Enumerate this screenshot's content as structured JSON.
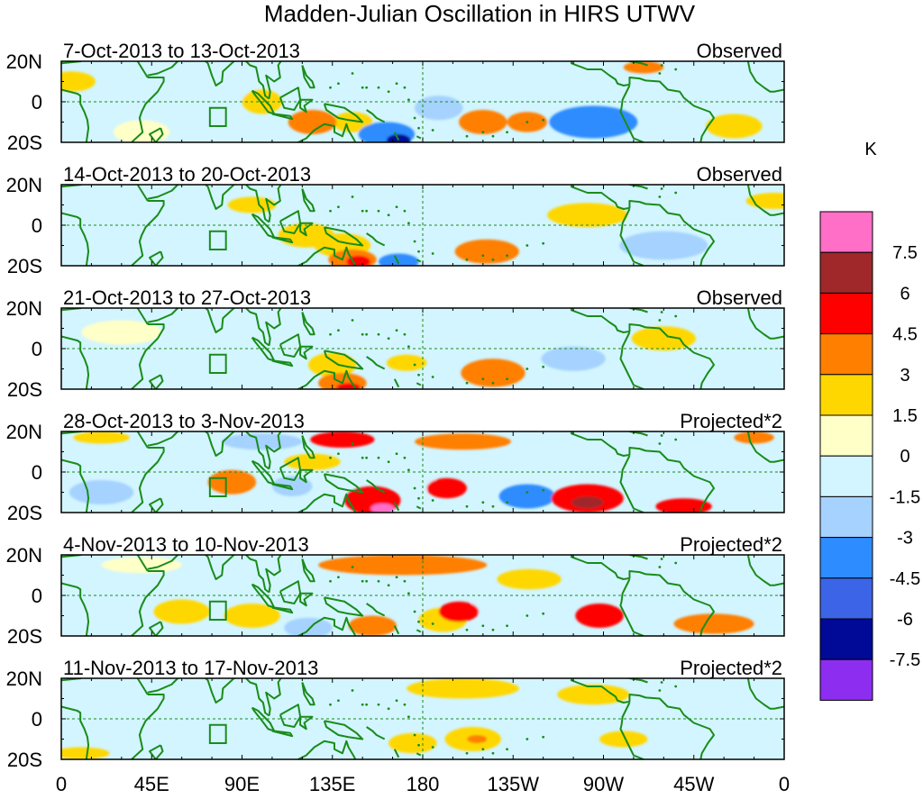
{
  "title": "Madden-Julian Oscillation in HIRS UTWV",
  "units": "K",
  "lat_labels": [
    "20N",
    "0",
    "20S"
  ],
  "lon_labels": [
    "0",
    "45E",
    "90E",
    "135E",
    "180",
    "135W",
    "90W",
    "45W",
    "0"
  ],
  "panels": [
    {
      "date_range": "7-Oct-2013 to 13-Oct-2013",
      "type": "Observed"
    },
    {
      "date_range": "14-Oct-2013 to 20-Oct-2013",
      "type": "Observed"
    },
    {
      "date_range": "21-Oct-2013 to 27-Oct-2013",
      "type": "Observed"
    },
    {
      "date_range": "28-Oct-2013 to 3-Nov-2013",
      "type": "Projected*2"
    },
    {
      "date_range": "4-Nov-2013 to 10-Nov-2013",
      "type": "Projected*2"
    },
    {
      "date_range": "11-Nov-2013 to 17-Nov-2013",
      "type": "Projected*2"
    }
  ],
  "colorbar": {
    "labels": [
      "7.5",
      "6",
      "4.5",
      "3",
      "1.5",
      "0",
      "-1.5",
      "-3",
      "-4.5",
      "-6",
      "-7.5"
    ],
    "colors": [
      "#ff6ec7",
      "#a0282a",
      "#ff0000",
      "#ff7f00",
      "#ffd700",
      "#ffffc8",
      "#d2f5ff",
      "#a5d2ff",
      "#2d8cff",
      "#3c64e6",
      "#000a96",
      "#8c2df0"
    ]
  },
  "map_colors": {
    "coast": "#1a8c1a",
    "frame": "#000000",
    "dashed": "#1a8c1a"
  },
  "anomalies": [
    [
      {
        "lon": 5,
        "lat": 10,
        "rx": 12,
        "ry": 5,
        "v": 1.5
      },
      {
        "lon": 40,
        "lat": -15,
        "rx": 14,
        "ry": 6,
        "v": 0.5
      },
      {
        "lon": 75,
        "lat": 5,
        "rx": 18,
        "ry": 7,
        "v": -1.5
      },
      {
        "lon": 100,
        "lat": 0,
        "rx": 10,
        "ry": 6,
        "v": 1.5
      },
      {
        "lon": 125,
        "lat": -10,
        "rx": 12,
        "ry": 6,
        "v": 3.2
      },
      {
        "lon": 145,
        "lat": -10,
        "rx": 10,
        "ry": 5,
        "v": 1.5
      },
      {
        "lon": 162,
        "lat": -16,
        "rx": 14,
        "ry": 6,
        "v": -4.5
      },
      {
        "lon": 168,
        "lat": -19,
        "rx": 6,
        "ry": 3,
        "v": -6.5
      },
      {
        "lon": 188,
        "lat": -3,
        "rx": 12,
        "ry": 6,
        "v": -3
      },
      {
        "lon": 210,
        "lat": -10,
        "rx": 12,
        "ry": 6,
        "v": 3
      },
      {
        "lon": 232,
        "lat": -10,
        "rx": 10,
        "ry": 5,
        "v": 3
      },
      {
        "lon": 265,
        "lat": -10,
        "rx": 22,
        "ry": 8,
        "v": -4.5
      },
      {
        "lon": 300,
        "lat": 0,
        "rx": 16,
        "ry": 8,
        "v": -1.5
      },
      {
        "lon": 290,
        "lat": 17,
        "rx": 10,
        "ry": 3,
        "v": 3
      },
      {
        "lon": 335,
        "lat": -12,
        "rx": 14,
        "ry": 6,
        "v": 1.5
      }
    ],
    [
      {
        "lon": 20,
        "lat": 8,
        "rx": 14,
        "ry": 5,
        "v": -1.5
      },
      {
        "lon": 95,
        "lat": 10,
        "rx": 12,
        "ry": 4,
        "v": 1.5
      },
      {
        "lon": 122,
        "lat": -5,
        "rx": 14,
        "ry": 6,
        "v": 1.5
      },
      {
        "lon": 140,
        "lat": -10,
        "rx": 14,
        "ry": 6,
        "v": 1.5
      },
      {
        "lon": 145,
        "lat": -17,
        "rx": 12,
        "ry": 5,
        "v": 4
      },
      {
        "lon": 148,
        "lat": -18,
        "rx": 6,
        "ry": 3,
        "v": 5.2
      },
      {
        "lon": 168,
        "lat": -18,
        "rx": 10,
        "ry": 4,
        "v": -3.5
      },
      {
        "lon": 185,
        "lat": 0,
        "rx": 22,
        "ry": 6,
        "v": -1.5
      },
      {
        "lon": 212,
        "lat": -13,
        "rx": 16,
        "ry": 6,
        "v": 3.5
      },
      {
        "lon": 262,
        "lat": 5,
        "rx": 20,
        "ry": 6,
        "v": 1.5
      },
      {
        "lon": 300,
        "lat": -10,
        "rx": 22,
        "ry": 7,
        "v": -3
      },
      {
        "lon": 355,
        "lat": 12,
        "rx": 14,
        "ry": 4,
        "v": 1.5
      }
    ],
    [
      {
        "lon": 30,
        "lat": 8,
        "rx": 20,
        "ry": 6,
        "v": 1
      },
      {
        "lon": 80,
        "lat": 12,
        "rx": 14,
        "ry": 5,
        "v": -1.5
      },
      {
        "lon": 110,
        "lat": 5,
        "rx": 14,
        "ry": 6,
        "v": -1.5
      },
      {
        "lon": 135,
        "lat": -8,
        "rx": 12,
        "ry": 6,
        "v": 1.5
      },
      {
        "lon": 140,
        "lat": -17,
        "rx": 12,
        "ry": 5,
        "v": 3.5
      },
      {
        "lon": 143,
        "lat": -19,
        "rx": 6,
        "ry": 2,
        "v": 5
      },
      {
        "lon": 172,
        "lat": -7,
        "rx": 10,
        "ry": 4,
        "v": 2
      },
      {
        "lon": 195,
        "lat": 5,
        "rx": 20,
        "ry": 6,
        "v": -1.5
      },
      {
        "lon": 215,
        "lat": -12,
        "rx": 16,
        "ry": 7,
        "v": 3.5
      },
      {
        "lon": 255,
        "lat": -5,
        "rx": 16,
        "ry": 6,
        "v": -2
      },
      {
        "lon": 300,
        "lat": 5,
        "rx": 16,
        "ry": 6,
        "v": 1.5
      },
      {
        "lon": 350,
        "lat": -8,
        "rx": 14,
        "ry": 6,
        "v": -1.5
      }
    ],
    [
      {
        "lon": 20,
        "lat": 17,
        "rx": 14,
        "ry": 3,
        "v": 1.5
      },
      {
        "lon": 20,
        "lat": -10,
        "rx": 16,
        "ry": 6,
        "v": -2
      },
      {
        "lon": 50,
        "lat": 5,
        "rx": 14,
        "ry": 5,
        "v": -1.5
      },
      {
        "lon": 85,
        "lat": -5,
        "rx": 12,
        "ry": 6,
        "v": 3
      },
      {
        "lon": 100,
        "lat": 15,
        "rx": 20,
        "ry": 4,
        "v": -2
      },
      {
        "lon": 115,
        "lat": -7,
        "rx": 10,
        "ry": 5,
        "v": -3
      },
      {
        "lon": 125,
        "lat": 5,
        "rx": 14,
        "ry": 4,
        "v": 2
      },
      {
        "lon": 140,
        "lat": 16,
        "rx": 16,
        "ry": 4,
        "v": 4.8
      },
      {
        "lon": 155,
        "lat": -14,
        "rx": 14,
        "ry": 7,
        "v": 5.5
      },
      {
        "lon": 160,
        "lat": -18,
        "rx": 6,
        "ry": 2.5,
        "v": 7.8
      },
      {
        "lon": 175,
        "lat": -5,
        "rx": 12,
        "ry": 5,
        "v": -1.5
      },
      {
        "lon": 192,
        "lat": -8,
        "rx": 10,
        "ry": 5,
        "v": 5
      },
      {
        "lon": 200,
        "lat": 15,
        "rx": 24,
        "ry": 4,
        "v": 3
      },
      {
        "lon": 232,
        "lat": -12,
        "rx": 14,
        "ry": 6,
        "v": -3.2
      },
      {
        "lon": 262,
        "lat": -13,
        "rx": 18,
        "ry": 7,
        "v": 5.2
      },
      {
        "lon": 262,
        "lat": -15,
        "rx": 8,
        "ry": 3,
        "v": 6.5
      },
      {
        "lon": 310,
        "lat": -17,
        "rx": 14,
        "ry": 4,
        "v": 4.5
      },
      {
        "lon": 300,
        "lat": 3,
        "rx": 16,
        "ry": 5,
        "v": -1.5
      },
      {
        "lon": 345,
        "lat": 17,
        "rx": 10,
        "ry": 3,
        "v": 3
      }
    ],
    [
      {
        "lon": 10,
        "lat": 5,
        "rx": 14,
        "ry": 5,
        "v": -1.5
      },
      {
        "lon": 40,
        "lat": 15,
        "rx": 20,
        "ry": 4,
        "v": 1
      },
      {
        "lon": 60,
        "lat": -8,
        "rx": 14,
        "ry": 6,
        "v": 1.5
      },
      {
        "lon": 95,
        "lat": -10,
        "rx": 14,
        "ry": 6,
        "v": 1.5
      },
      {
        "lon": 110,
        "lat": 10,
        "rx": 14,
        "ry": 5,
        "v": -1.5
      },
      {
        "lon": 123,
        "lat": -16,
        "rx": 12,
        "ry": 5,
        "v": -3
      },
      {
        "lon": 155,
        "lat": -15,
        "rx": 12,
        "ry": 5,
        "v": 3
      },
      {
        "lon": 170,
        "lat": 15,
        "rx": 42,
        "ry": 5,
        "v": 3.5
      },
      {
        "lon": 190,
        "lat": -12,
        "rx": 12,
        "ry": 6,
        "v": 1.5
      },
      {
        "lon": 198,
        "lat": -8,
        "rx": 10,
        "ry": 5,
        "v": 5
      },
      {
        "lon": 218,
        "lat": -5,
        "rx": 14,
        "ry": 6,
        "v": -1.5
      },
      {
        "lon": 233,
        "lat": 8,
        "rx": 16,
        "ry": 5,
        "v": 2
      },
      {
        "lon": 268,
        "lat": -10,
        "rx": 12,
        "ry": 6,
        "v": 4.8
      },
      {
        "lon": 300,
        "lat": 5,
        "rx": 16,
        "ry": 6,
        "v": -1.5
      },
      {
        "lon": 325,
        "lat": -14,
        "rx": 20,
        "ry": 5,
        "v": 3
      }
    ],
    [
      {
        "lon": 10,
        "lat": -17,
        "rx": 14,
        "ry": 3,
        "v": 1.5
      },
      {
        "lon": 30,
        "lat": 10,
        "rx": 16,
        "ry": 6,
        "v": -1.5
      },
      {
        "lon": 65,
        "lat": -12,
        "rx": 14,
        "ry": 5,
        "v": -1.5
      },
      {
        "lon": 100,
        "lat": 12,
        "rx": 16,
        "ry": 5,
        "v": -1.5
      },
      {
        "lon": 120,
        "lat": -14,
        "rx": 14,
        "ry": 5,
        "v": -1.5
      },
      {
        "lon": 150,
        "lat": 5,
        "rx": 14,
        "ry": 5,
        "v": -1.5
      },
      {
        "lon": 175,
        "lat": -12,
        "rx": 12,
        "ry": 5,
        "v": 1.5
      },
      {
        "lon": 200,
        "lat": 15,
        "rx": 28,
        "ry": 5,
        "v": 2
      },
      {
        "lon": 205,
        "lat": -10,
        "rx": 14,
        "ry": 6,
        "v": 2
      },
      {
        "lon": 207,
        "lat": -10,
        "rx": 5,
        "ry": 2,
        "v": 3.5
      },
      {
        "lon": 238,
        "lat": -5,
        "rx": 14,
        "ry": 6,
        "v": -1.5
      },
      {
        "lon": 265,
        "lat": 12,
        "rx": 18,
        "ry": 5,
        "v": 1.5
      },
      {
        "lon": 280,
        "lat": -10,
        "rx": 12,
        "ry": 4,
        "v": 2
      },
      {
        "lon": 330,
        "lat": 10,
        "rx": 16,
        "ry": 6,
        "v": -1.5
      }
    ]
  ]
}
